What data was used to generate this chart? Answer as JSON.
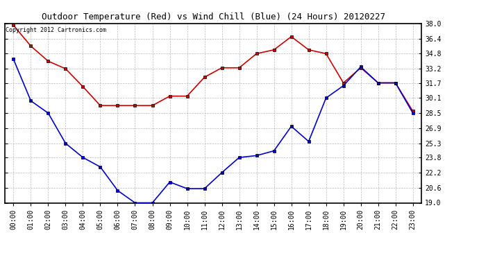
{
  "title": "Outdoor Temperature (Red) vs Wind Chill (Blue) (24 Hours) 20120227",
  "copyright_text": "Copyright 2012 Cartronics.com",
  "x_labels": [
    "00:00",
    "01:00",
    "02:00",
    "03:00",
    "04:00",
    "05:00",
    "06:00",
    "07:00",
    "08:00",
    "09:00",
    "10:00",
    "11:00",
    "12:00",
    "13:00",
    "14:00",
    "15:00",
    "16:00",
    "17:00",
    "18:00",
    "19:00",
    "20:00",
    "21:00",
    "22:00",
    "23:00"
  ],
  "red_data": [
    37.8,
    35.6,
    34.0,
    33.2,
    31.3,
    29.3,
    29.3,
    29.3,
    29.3,
    30.3,
    30.3,
    32.3,
    33.3,
    33.3,
    34.8,
    35.2,
    36.6,
    35.2,
    34.8,
    31.7,
    33.3,
    31.7,
    31.7,
    28.7
  ],
  "blue_data": [
    34.2,
    29.8,
    28.5,
    25.3,
    23.8,
    22.8,
    20.3,
    19.0,
    19.0,
    21.2,
    20.5,
    20.5,
    22.2,
    23.8,
    24.0,
    24.5,
    27.1,
    25.5,
    30.1,
    31.4,
    33.4,
    31.7,
    31.7,
    28.5
  ],
  "y_min": 19.0,
  "y_max": 38.0,
  "y_ticks": [
    19.0,
    20.6,
    22.2,
    23.8,
    25.3,
    26.9,
    28.5,
    30.1,
    31.7,
    33.2,
    34.8,
    36.4,
    38.0
  ],
  "red_color": "#cc0000",
  "blue_color": "#0000cc",
  "bg_color": "#ffffff",
  "grid_color": "#bbbbbb",
  "marker": "s",
  "marker_size": 3,
  "title_fontsize": 9,
  "tick_fontsize": 7,
  "copyright_fontsize": 6
}
